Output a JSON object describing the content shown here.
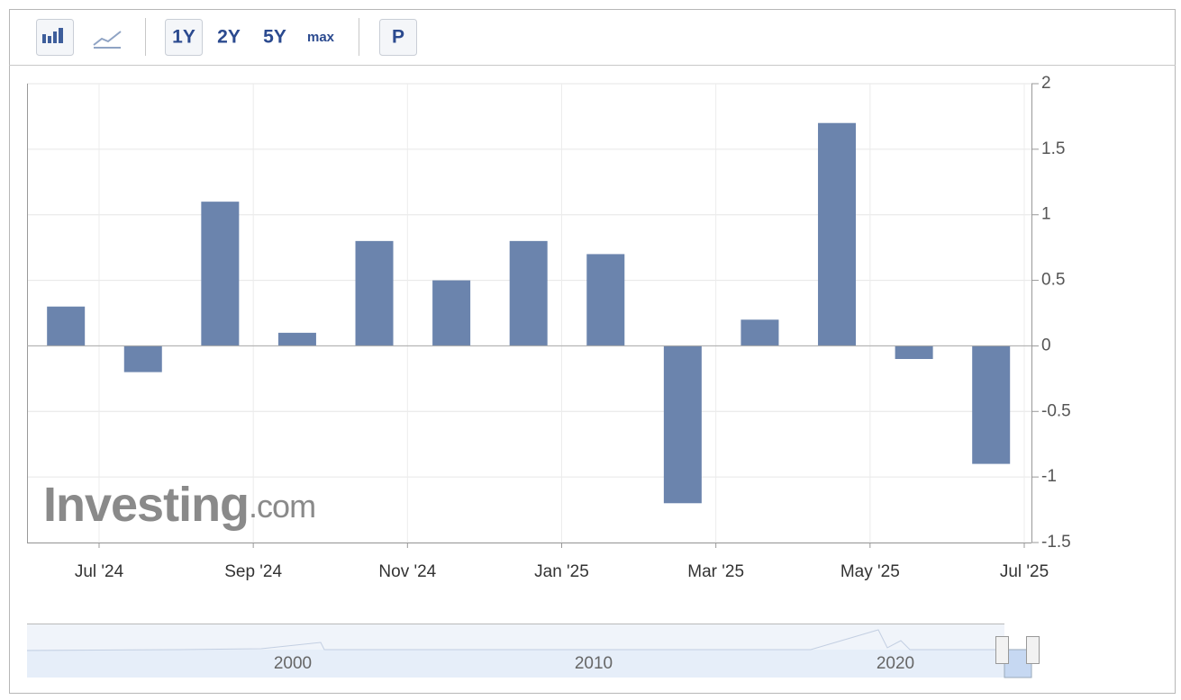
{
  "toolbar": {
    "ranges": [
      "1Y",
      "2Y",
      "5Y",
      "max"
    ],
    "extra": "P"
  },
  "watermark": {
    "brand": "Investing",
    "suffix": ".com"
  },
  "navigator": {
    "labels": [
      "2000",
      "2010",
      "2020"
    ]
  },
  "chart_data": {
    "type": "bar",
    "x": [
      "2024-06",
      "2024-07",
      "2024-08",
      "2024-09",
      "2024-10",
      "2024-11",
      "2024-12",
      "2025-01",
      "2025-02",
      "2025-03",
      "2025-04",
      "2025-05",
      "2025-06"
    ],
    "values": [
      0.3,
      -0.2,
      1.1,
      0.1,
      0.8,
      0.5,
      0.8,
      0.7,
      -1.2,
      0.2,
      1.7,
      -0.1,
      -0.9
    ],
    "color": "#6b84ad",
    "xlim": [
      "2024-06",
      "2025-07"
    ],
    "xticks": [
      {
        "value": "2024-07",
        "label": "Jul '24"
      },
      {
        "value": "2024-09",
        "label": "Sep '24"
      },
      {
        "value": "2024-11",
        "label": "Nov '24"
      },
      {
        "value": "2025-01",
        "label": "Jan '25"
      },
      {
        "value": "2025-03",
        "label": "Mar '25"
      },
      {
        "value": "2025-05",
        "label": "May '25"
      },
      {
        "value": "2025-07",
        "label": "Jul '25"
      }
    ],
    "ylim": [
      -1.5,
      2
    ],
    "yticks": [
      -1.5,
      -1,
      -0.5,
      0,
      0.5,
      1,
      1.5,
      2
    ],
    "grid": true
  }
}
